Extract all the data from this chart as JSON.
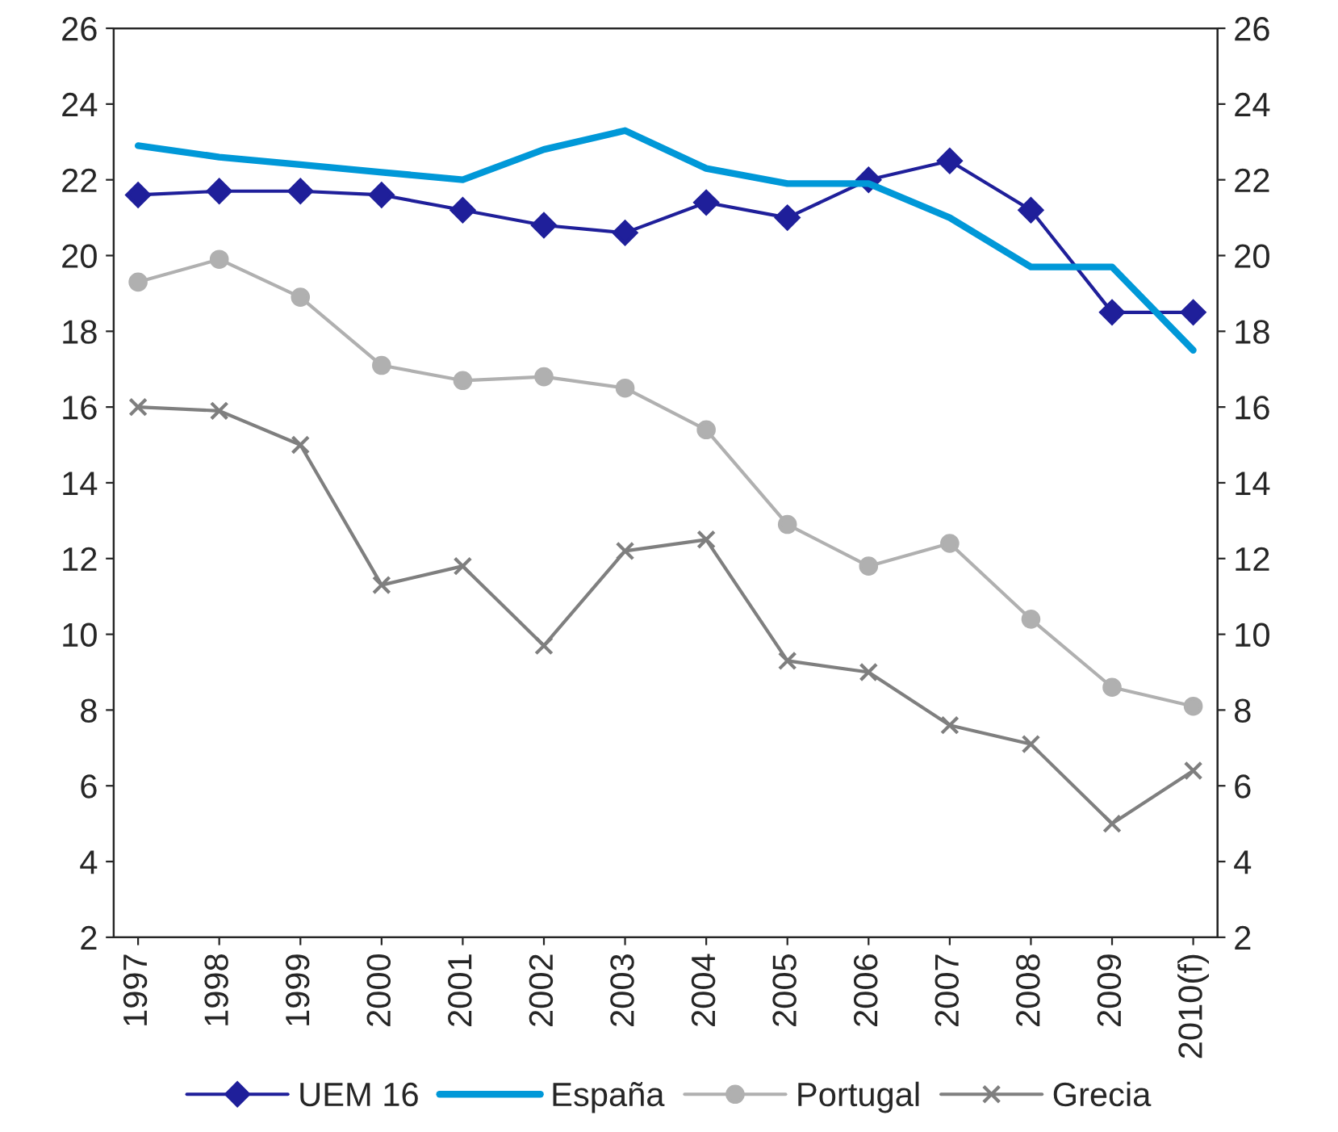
{
  "chart_data": {
    "type": "line",
    "categories": [
      "1997",
      "1998",
      "1999",
      "2000",
      "2001",
      "2002",
      "2003",
      "2004",
      "2005",
      "2006",
      "2007",
      "2008",
      "2009",
      "2010(f)"
    ],
    "series": [
      {
        "name": "UEM 16",
        "color": "#1f1f9a",
        "marker": "diamond",
        "values": [
          21.6,
          21.7,
          21.7,
          21.6,
          21.2,
          20.8,
          20.6,
          21.4,
          21.0,
          22.0,
          22.5,
          21.2,
          18.5,
          18.5
        ]
      },
      {
        "name": "España",
        "color": "#0098d8",
        "marker": "none",
        "values": [
          22.9,
          22.6,
          22.4,
          22.2,
          22.0,
          22.8,
          23.3,
          22.3,
          21.9,
          21.9,
          21.0,
          19.7,
          19.7,
          17.5
        ]
      },
      {
        "name": "Portugal",
        "color": "#b0b0b0",
        "marker": "circle",
        "values": [
          19.3,
          19.9,
          18.9,
          17.1,
          16.7,
          16.8,
          16.5,
          15.4,
          12.9,
          11.8,
          12.4,
          10.4,
          8.6,
          8.1
        ]
      },
      {
        "name": "Grecia",
        "color": "#7f7f7f",
        "marker": "cross",
        "values": [
          16.0,
          15.9,
          15.0,
          11.3,
          11.8,
          9.7,
          12.2,
          12.5,
          9.3,
          9.0,
          7.6,
          7.1,
          5.0,
          6.4
        ]
      }
    ],
    "ylim": [
      2,
      26
    ],
    "yticks": [
      2,
      4,
      6,
      8,
      10,
      12,
      14,
      16,
      18,
      20,
      22,
      24,
      26
    ],
    "y2lim": [
      2,
      26
    ],
    "y2ticks": [
      2,
      4,
      6,
      8,
      10,
      12,
      14,
      16,
      18,
      20,
      22,
      24,
      26
    ],
    "grid": false,
    "legend": "bottom"
  }
}
